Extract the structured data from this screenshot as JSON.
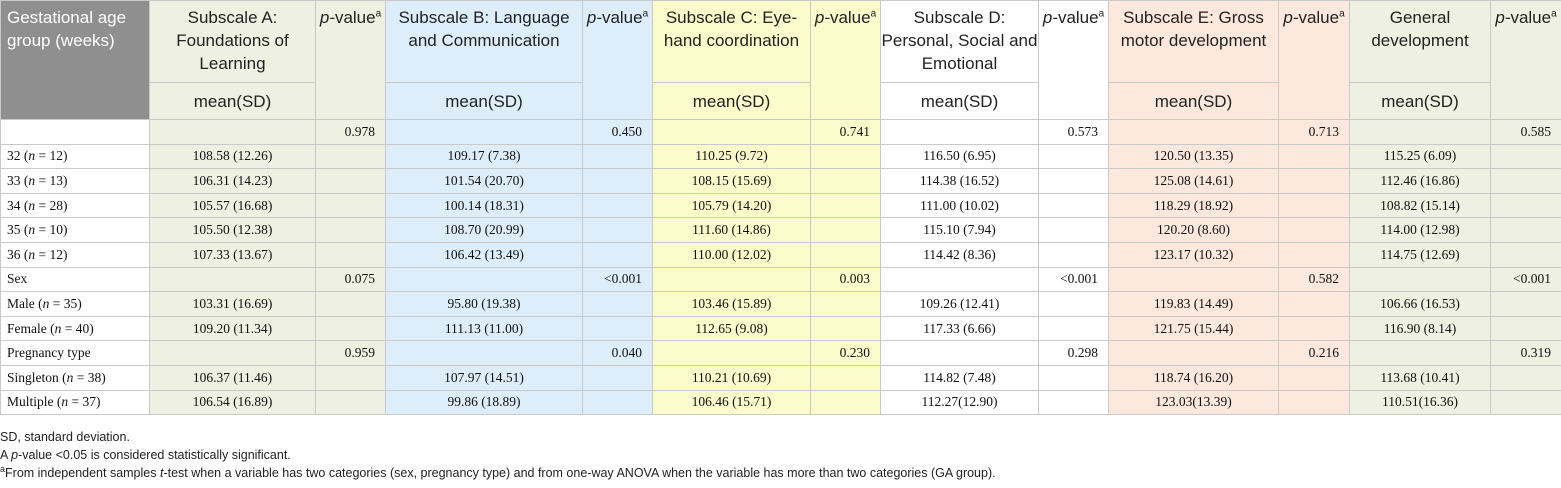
{
  "header": {
    "ga_group": "Gestational age group (weeks)",
    "subscale_a": "Subscale A: Foundations of Learning",
    "subscale_b": "Subscale B: Language and Communication",
    "subscale_c": "Subscale C: Eye-hand coordination",
    "subscale_d": "Subscale D: Personal, Social and Emotional",
    "subscale_e": "Subscale E: Gross motor development",
    "general": "General development",
    "p_value": "p-value",
    "p_sup": "a",
    "mean_sd": "mean(SD)"
  },
  "rows": [
    {
      "label": "",
      "a": "",
      "pa": "0.978",
      "b": "",
      "pb": "0.450",
      "c": "",
      "pc": "0.741",
      "d": "",
      "pd": "0.573",
      "e": "",
      "pe": "0.713",
      "g": "",
      "pg": "0.585"
    },
    {
      "label": "32 (n = 12)",
      "a": "108.58 (12.26)",
      "pa": "",
      "b": "109.17 (7.38)",
      "pb": "",
      "c": "110.25 (9.72)",
      "pc": "",
      "d": "116.50 (6.95)",
      "pd": "",
      "e": "120.50 (13.35)",
      "pe": "",
      "g": "115.25 (6.09)",
      "pg": ""
    },
    {
      "label": "33 (n = 13)",
      "a": "106.31 (14.23)",
      "pa": "",
      "b": "101.54 (20.70)",
      "pb": "",
      "c": "108.15 (15.69)",
      "pc": "",
      "d": "114.38 (16.52)",
      "pd": "",
      "e": "125.08 (14.61)",
      "pe": "",
      "g": "112.46 (16.86)",
      "pg": ""
    },
    {
      "label": "34 (n = 28)",
      "a": "105.57 (16.68)",
      "pa": "",
      "b": "100.14 (18.31)",
      "pb": "",
      "c": "105.79 (14.20)",
      "pc": "",
      "d": "111.00 (10.02)",
      "pd": "",
      "e": "118.29 (18.92)",
      "pe": "",
      "g": "108.82 (15.14)",
      "pg": ""
    },
    {
      "label": "35 (n = 10)",
      "a": "105.50 (12.38)",
      "pa": "",
      "b": "108.70 (20.99)",
      "pb": "",
      "c": "111.60 (14.86)",
      "pc": "",
      "d": "115.10 (7.94)",
      "pd": "",
      "e": "120.20 (8.60)",
      "pe": "",
      "g": "114.00 (12.98)",
      "pg": ""
    },
    {
      "label": "36 (n = 12)",
      "a": "107.33 (13.67)",
      "pa": "",
      "b": "106.42 (13.49)",
      "pb": "",
      "c": "110.00 (12.02)",
      "pc": "",
      "d": "114.42 (8.36)",
      "pd": "",
      "e": "123.17 (10.32)",
      "pe": "",
      "g": "114.75 (12.69)",
      "pg": ""
    },
    {
      "label": "Sex",
      "a": "",
      "pa": "0.075",
      "b": "",
      "pb": "<0.001",
      "c": "",
      "pc": "0.003",
      "d": "",
      "pd": "<0.001",
      "e": "",
      "pe": "0.582",
      "g": "",
      "pg": "<0.001"
    },
    {
      "label": "Male (n = 35)",
      "a": "103.31 (16.69)",
      "pa": "",
      "b": "95.80 (19.38)",
      "pb": "",
      "c": "103.46 (15.89)",
      "pc": "",
      "d": "109.26 (12.41)",
      "pd": "",
      "e": "119.83 (14.49)",
      "pe": "",
      "g": "106.66 (16.53)",
      "pg": ""
    },
    {
      "label": "Female (n = 40)",
      "a": "109.20 (11.34)",
      "pa": "",
      "b": "111.13 (11.00)",
      "pb": "",
      "c": "112.65 (9.08)",
      "pc": "",
      "d": "117.33 (6.66)",
      "pd": "",
      "e": "121.75 (15.44)",
      "pe": "",
      "g": "116.90 (8.14)",
      "pg": ""
    },
    {
      "label": "Pregnancy type",
      "a": "",
      "pa": "0.959",
      "b": "",
      "pb": "0.040",
      "c": "",
      "pc": "0.230",
      "d": "",
      "pd": "0.298",
      "e": "",
      "pe": "0.216",
      "g": "",
      "pg": "0.319"
    },
    {
      "label": "Singleton (n = 38)",
      "a": "106.37 (11.46)",
      "pa": "",
      "b": "107.97 (14.51)",
      "pb": "",
      "c": "110.21 (10.69)",
      "pc": "",
      "d": "114.82 (7.48)",
      "pd": "",
      "e": "118.74 (16.20)",
      "pe": "",
      "g": "113.68 (10.41)",
      "pg": ""
    },
    {
      "label": "Multiple (n = 37)",
      "a": "106.54 (16.89)",
      "pa": "",
      "b": "99.86 (18.89)",
      "pb": "",
      "c": "106.46 (15.71)",
      "pc": "",
      "d": "112.27(12.90)",
      "pd": "",
      "e": "123.03(13.39)",
      "pe": "",
      "g": "110.51(16.36)",
      "pg": ""
    }
  ],
  "notes": {
    "sd": "SD, standard deviation.",
    "significance": "A p-value <0.05 is considered statistically significant.",
    "footnote_mark": "a",
    "footnote": "From independent samples t-test when a variable has two categories (sex, pregnancy type) and from one-way ANOVA when the variable has more than two categories (GA group)."
  },
  "colors": {
    "header_gray": "#8f8f8f",
    "subscale_a": "#eef0e1",
    "subscale_b": "#ddeefa",
    "subscale_c": "#fcfbcb",
    "subscale_d": "#ffffff",
    "subscale_e": "#fce8dc",
    "general": "#eef0e1"
  }
}
